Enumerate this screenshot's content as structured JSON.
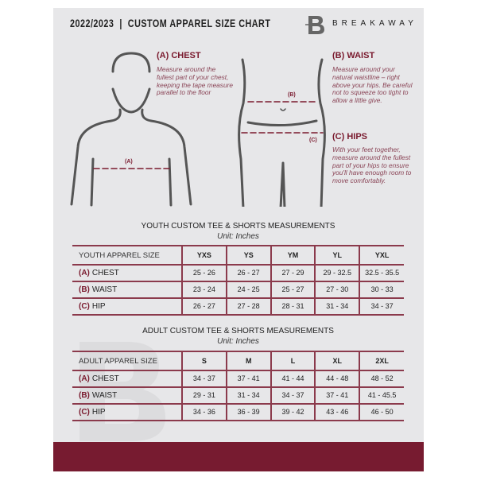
{
  "header": {
    "title": "2022/2023  |  CUSTOM APPAREL SIZE CHART",
    "brand": "BREAKAWAY",
    "logo_letter": "B"
  },
  "colors": {
    "accent": "#771b30",
    "panel": "#e7e7e9"
  },
  "measure": {
    "chest": {
      "title": "(A) CHEST",
      "text": "Measure around the fullest part of your chest, keeping the tape measure parallel to the floor",
      "marker": "(A)"
    },
    "waist": {
      "title": "(B) WAIST",
      "text": "Measure around your natural waistline – right above your hips. Be careful not to squeeze too tight to allow a little give.",
      "marker": "(B)"
    },
    "hips": {
      "title": "(C) HIPS",
      "text": "With your feet together, measure around the fullest part of your hips to ensure you'll have enough room to move comfortably.",
      "marker": "(C)"
    }
  },
  "youth": {
    "title": "YOUTH CUSTOM TEE & SHORTS MEASUREMENTS",
    "unit": "Unit: Inches",
    "header": "YOUTH APPAREL SIZE",
    "sizes": [
      "YXS",
      "YS",
      "YM",
      "YL",
      "YXL"
    ],
    "rows": [
      {
        "letter": "(A)",
        "name": "CHEST",
        "values": [
          "25 - 26",
          "26 - 27",
          "27 - 29",
          "29 - 32.5",
          "32.5 - 35.5"
        ]
      },
      {
        "letter": "(B)",
        "name": "WAIST",
        "values": [
          "23 - 24",
          "24 - 25",
          "25 - 27",
          "27 - 30",
          "30 - 33"
        ]
      },
      {
        "letter": "(C)",
        "name": "HIP",
        "values": [
          "26 - 27",
          "27 - 28",
          "28 - 31",
          "31 - 34",
          "34 - 37"
        ]
      }
    ]
  },
  "adult": {
    "title": "ADULT CUSTOM TEE & SHORTS MEASUREMENTS",
    "unit": "Unit: Inches",
    "header": "ADULT APPAREL SIZE",
    "sizes": [
      "S",
      "M",
      "L",
      "XL",
      "2XL"
    ],
    "rows": [
      {
        "letter": "(A)",
        "name": "CHEST",
        "values": [
          "34 - 37",
          "37 - 41",
          "41 - 44",
          "44 - 48",
          "48 - 52"
        ]
      },
      {
        "letter": "(B)",
        "name": "WAIST",
        "values": [
          "29 - 31",
          "31 - 34",
          "34 - 37",
          "37 - 41",
          "41 - 45.5"
        ]
      },
      {
        "letter": "(C)",
        "name": "HIP",
        "values": [
          "34 - 36",
          "36 - 39",
          "39 - 42",
          "43 - 46",
          "46 - 50"
        ]
      }
    ]
  }
}
